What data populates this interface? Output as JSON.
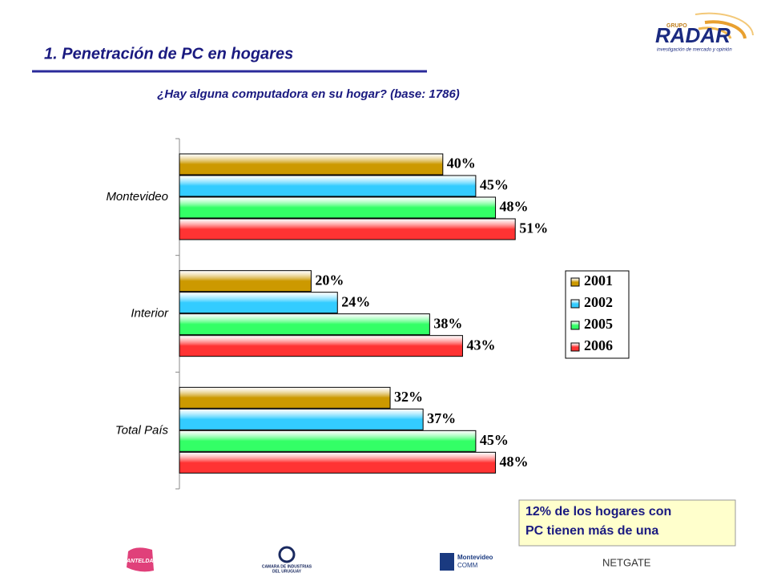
{
  "chart_data": {
    "type": "hbar",
    "title": "1. Penetración de PC en hogares",
    "subtitle": "¿Hay alguna computadora en su hogar? (base: 1786)",
    "categories": [
      "Montevideo",
      "Interior",
      "Total País"
    ],
    "xlim": [
      0,
      60
    ],
    "legend": "right",
    "series": [
      {
        "name": "2001",
        "color": "#cc9900",
        "values": [
          40,
          20,
          32
        ],
        "value_labels": [
          "40%",
          "20%",
          "32%"
        ]
      },
      {
        "name": "2002",
        "color": "#33ccff",
        "values": [
          45,
          24,
          37
        ],
        "value_labels": [
          "45%",
          "24%",
          "37%"
        ]
      },
      {
        "name": "2005",
        "color": "#33ff66",
        "values": [
          48,
          38,
          45
        ],
        "value_labels": [
          "48%",
          "38%",
          "45%"
        ]
      },
      {
        "name": "2006",
        "color": "#ff3333",
        "values": [
          51,
          43,
          48
        ],
        "value_labels": [
          "51%",
          "43%",
          "48%"
        ]
      }
    ]
  },
  "note": [
    "12% de los hogares con",
    "PC tienen más de una"
  ],
  "logo": {
    "group": "GRUPO",
    "name": "RADAR",
    "tagline": "investigación de mercado y opinión"
  },
  "footer_logos": [
    "ANTELDATA",
    "CAMARA DE INDUSTRIAS",
    "DEL URUGUAY",
    "Montevideo",
    "COMM",
    "NETGATE"
  ]
}
